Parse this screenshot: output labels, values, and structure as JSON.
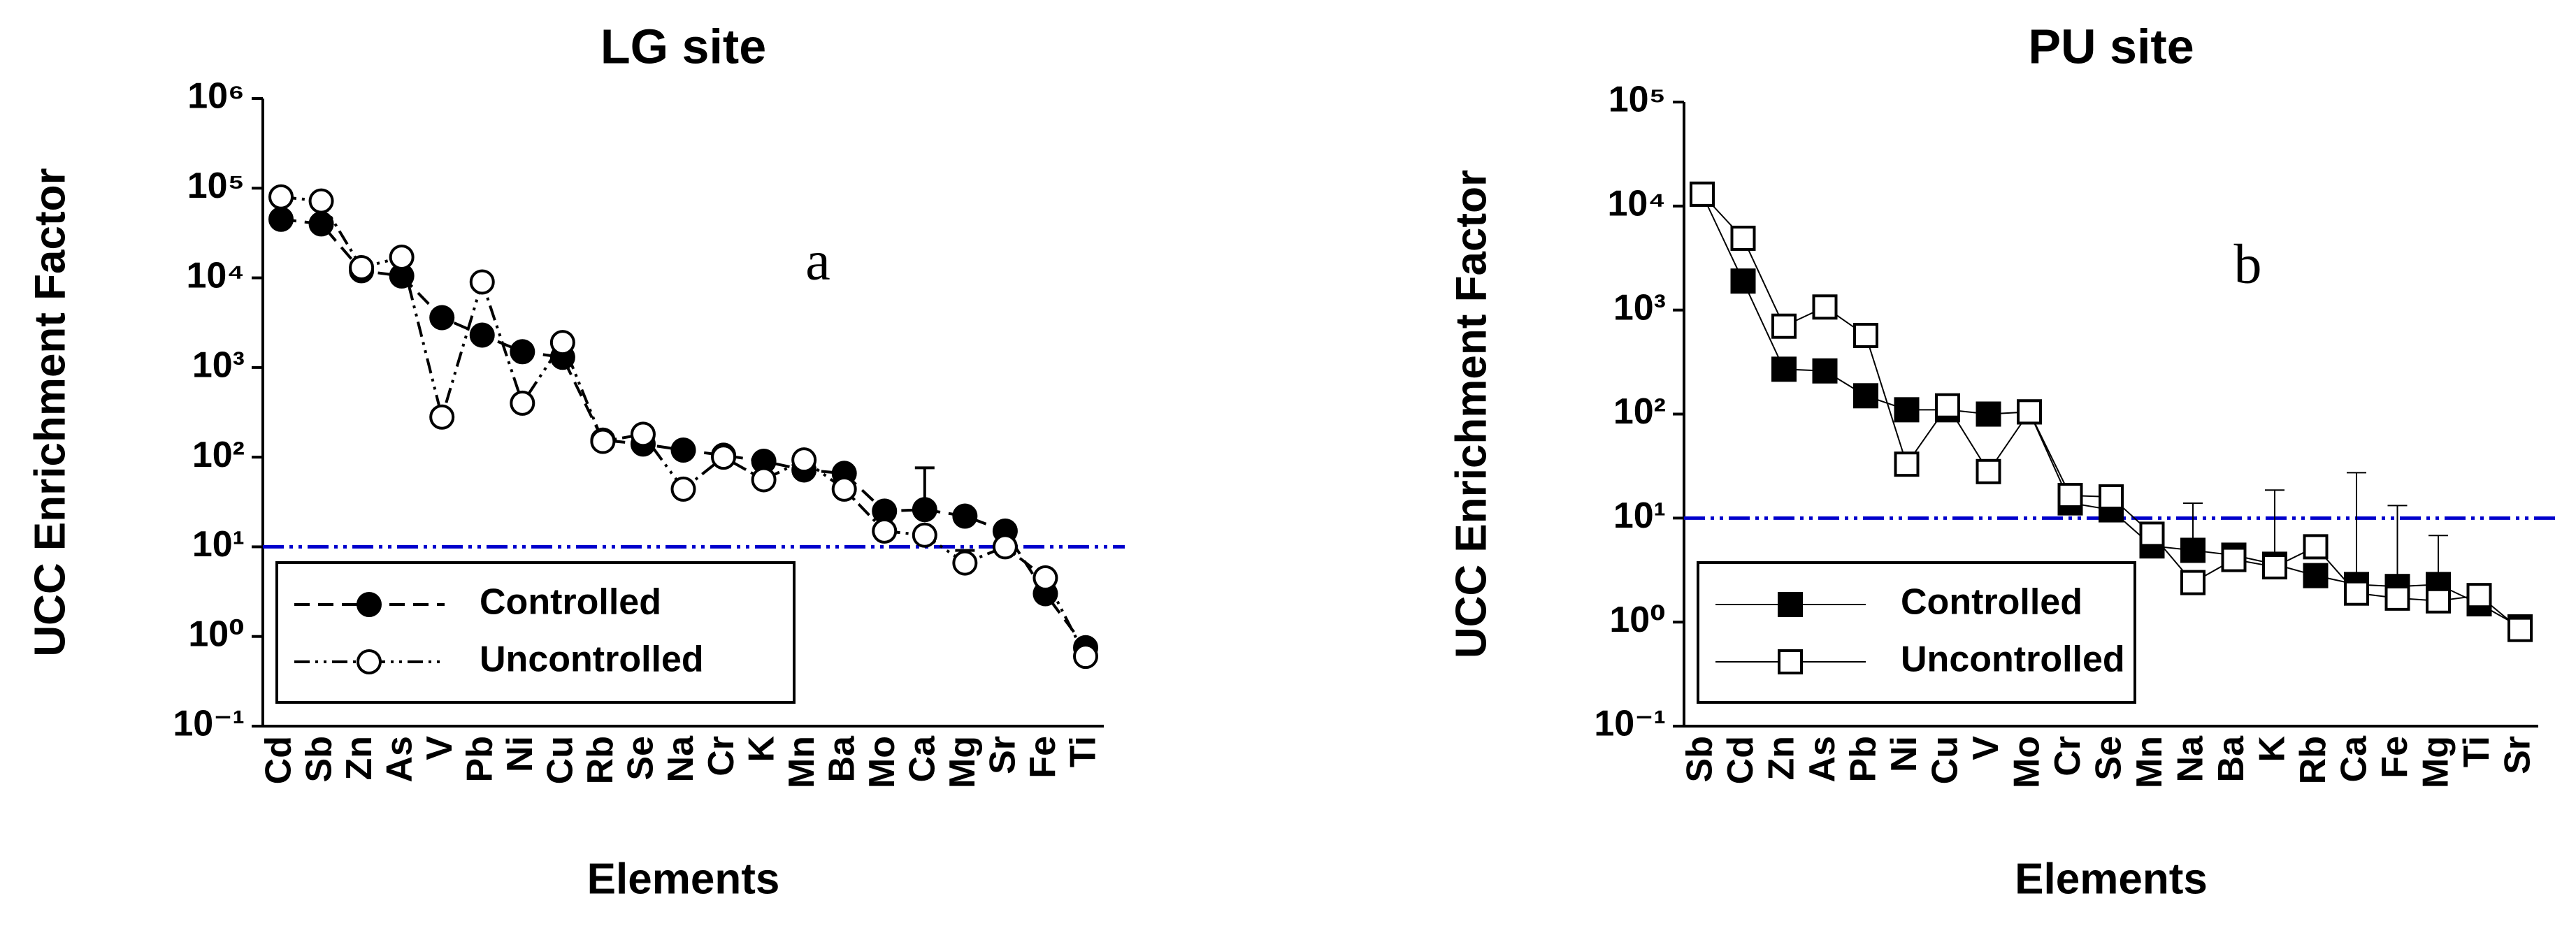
{
  "chart_data": [
    {
      "type": "line",
      "title": "LG site",
      "x_label": "Elements",
      "y_label": "UCC Enrichment Factor",
      "annotation": "a",
      "log_y": true,
      "ylim": [
        0.1,
        1000000
      ],
      "yticks": [
        {
          "value": 0.1,
          "label": "10⁻¹"
        },
        {
          "value": 1,
          "label": "10⁰"
        },
        {
          "value": 10,
          "label": "10¹"
        },
        {
          "value": 100,
          "label": "10²"
        },
        {
          "value": 1000,
          "label": "10³"
        },
        {
          "value": 10000,
          "label": "10⁴"
        },
        {
          "value": 100000,
          "label": "10⁵"
        },
        {
          "value": 1000000,
          "label": "10⁶"
        }
      ],
      "reference_line": {
        "value": 10,
        "color": "#0000cc"
      },
      "legend": "lower left",
      "marker": "circle",
      "categories": [
        "Cd",
        "Sb",
        "Zn",
        "As",
        "V",
        "Pb",
        "Ni",
        "Cu",
        "Rb",
        "Se",
        "Na",
        "Cr",
        "K",
        "Mn",
        "Ba",
        "Mo",
        "Ca",
        "Mg",
        "Sr",
        "Fe",
        "Ti"
      ],
      "series": [
        {
          "name": "Controlled",
          "color": "#000000",
          "marker_fill": "#000000",
          "dash": "22 12",
          "values": [
            45000,
            40000,
            12000,
            10500,
            3600,
            2300,
            1500,
            1300,
            155,
            140,
            120,
            105,
            90,
            72,
            66,
            25,
            26,
            22,
            15,
            3,
            0.75
          ],
          "errors": [
            null,
            null,
            null,
            null,
            null,
            null,
            null,
            null,
            null,
            null,
            null,
            null,
            null,
            null,
            null,
            null,
            50,
            null,
            null,
            null,
            0.1
          ]
        },
        {
          "name": "Uncontrolled",
          "color": "#000000",
          "marker_fill": "#ffffff",
          "dash": "22 8 4 8 4 8",
          "values": [
            80000,
            72000,
            13000,
            17000,
            280,
            9000,
            400,
            1900,
            150,
            180,
            44,
            100,
            56,
            93,
            44,
            15,
            13.5,
            6.6,
            10,
            4.5,
            0.6
          ],
          "errors": [
            null,
            null,
            null,
            null,
            null,
            null,
            null,
            null,
            null,
            null,
            null,
            null,
            null,
            null,
            null,
            null,
            null,
            2.5,
            null,
            null,
            0.15
          ]
        }
      ]
    },
    {
      "type": "line",
      "title": "PU site",
      "x_label": "Elements",
      "y_label": "UCC Enrichment Factor",
      "annotation": "b",
      "log_y": true,
      "ylim": [
        0.1,
        100000
      ],
      "yticks": [
        {
          "value": 0.1,
          "label": "10⁻¹"
        },
        {
          "value": 1,
          "label": "10⁰"
        },
        {
          "value": 10,
          "label": "10¹"
        },
        {
          "value": 100,
          "label": "10²"
        },
        {
          "value": 1000,
          "label": "10³"
        },
        {
          "value": 10000,
          "label": "10⁴"
        },
        {
          "value": 100000,
          "label": "10⁵"
        }
      ],
      "reference_line": {
        "value": 10,
        "color": "#0000cc"
      },
      "legend": "lower left",
      "marker": "square",
      "categories": [
        "Sb",
        "Cd",
        "Zn",
        "As",
        "Pb",
        "Ni",
        "Cu",
        "V",
        "Mo",
        "Cr",
        "Se",
        "Mn",
        "Na",
        "Ba",
        "K",
        "Rb",
        "Ca",
        "Fe",
        "Mg",
        "Ti",
        "Sr"
      ],
      "series": [
        {
          "name": "Controlled",
          "color": "#000000",
          "marker_fill": "#000000",
          "dash": "",
          "values": [
            13000,
            1900,
            270,
            260,
            150,
            110,
            110,
            100,
            105,
            14,
            12,
            5.4,
            4.9,
            4.4,
            3.6,
            2.8,
            2.3,
            2.2,
            2.3,
            1.5,
            0.9
          ],
          "errors": [
            null,
            null,
            null,
            null,
            null,
            null,
            null,
            null,
            null,
            null,
            null,
            null,
            9,
            null,
            15,
            null,
            25,
            11,
            4.5,
            0.8,
            null
          ]
        },
        {
          "name": "Uncontrolled",
          "color": "#000000",
          "marker_fill": "#ffffff",
          "dash": "",
          "values": [
            13000,
            4900,
            700,
            1070,
            570,
            33,
            120,
            28,
            105,
            16.5,
            16,
            7,
            2.4,
            4,
            3.4,
            5.3,
            1.9,
            1.7,
            1.6,
            1.8,
            0.85
          ],
          "errors": [
            null,
            null,
            null,
            null,
            null,
            null,
            null,
            null,
            null,
            null,
            null,
            null,
            null,
            null,
            null,
            null,
            null,
            null,
            null,
            null,
            null
          ]
        }
      ]
    }
  ]
}
